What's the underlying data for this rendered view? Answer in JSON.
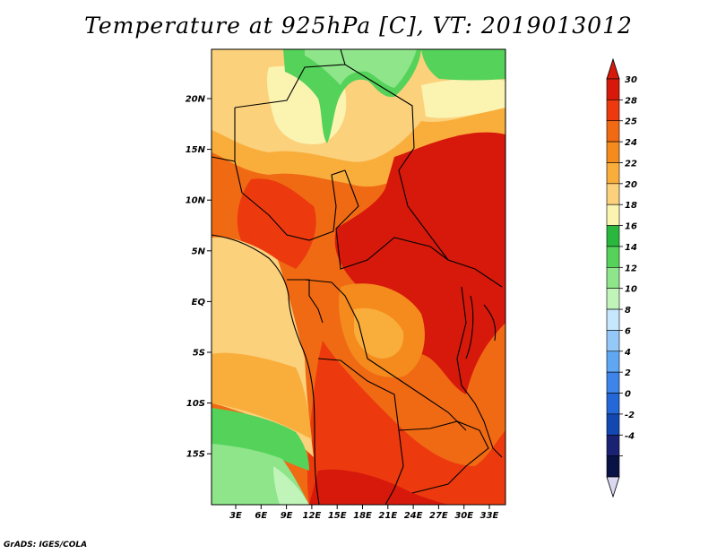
{
  "title": "Temperature at 925hPa [C], VT: 2019013012",
  "credit": "GrADS: IGES/COLA",
  "map": {
    "lat_ticks": [
      "20N",
      "15N",
      "10N",
      "5N",
      "EQ",
      "5S",
      "10S",
      "15S"
    ],
    "lon_ticks": [
      "3E",
      "6E",
      "9E",
      "12E",
      "15E",
      "18E",
      "21E",
      "24E",
      "27E",
      "30E",
      "33E"
    ]
  },
  "colorbar": {
    "levels": [
      "30",
      "28",
      "25",
      "24",
      "22",
      "20",
      "18",
      "16",
      "14",
      "12",
      "10",
      "8",
      "6",
      "4",
      "2",
      "0",
      "-2",
      "-4"
    ],
    "colors": [
      "#d7190b",
      "#ec3a0e",
      "#f06a14",
      "#f48b1c",
      "#f9ae3c",
      "#fbd17c",
      "#fbf3b0",
      "#2ab73e",
      "#55d25a",
      "#8ee58a",
      "#c0f4b9",
      "#c6e7fd",
      "#93c8f8",
      "#5fa7f3",
      "#3d85ea",
      "#2467d9",
      "#1348b3",
      "#1a2373",
      "#081244"
    ],
    "top_arrow_color": "#d7190b",
    "bottom_arrow_color": "#dad7f0"
  }
}
